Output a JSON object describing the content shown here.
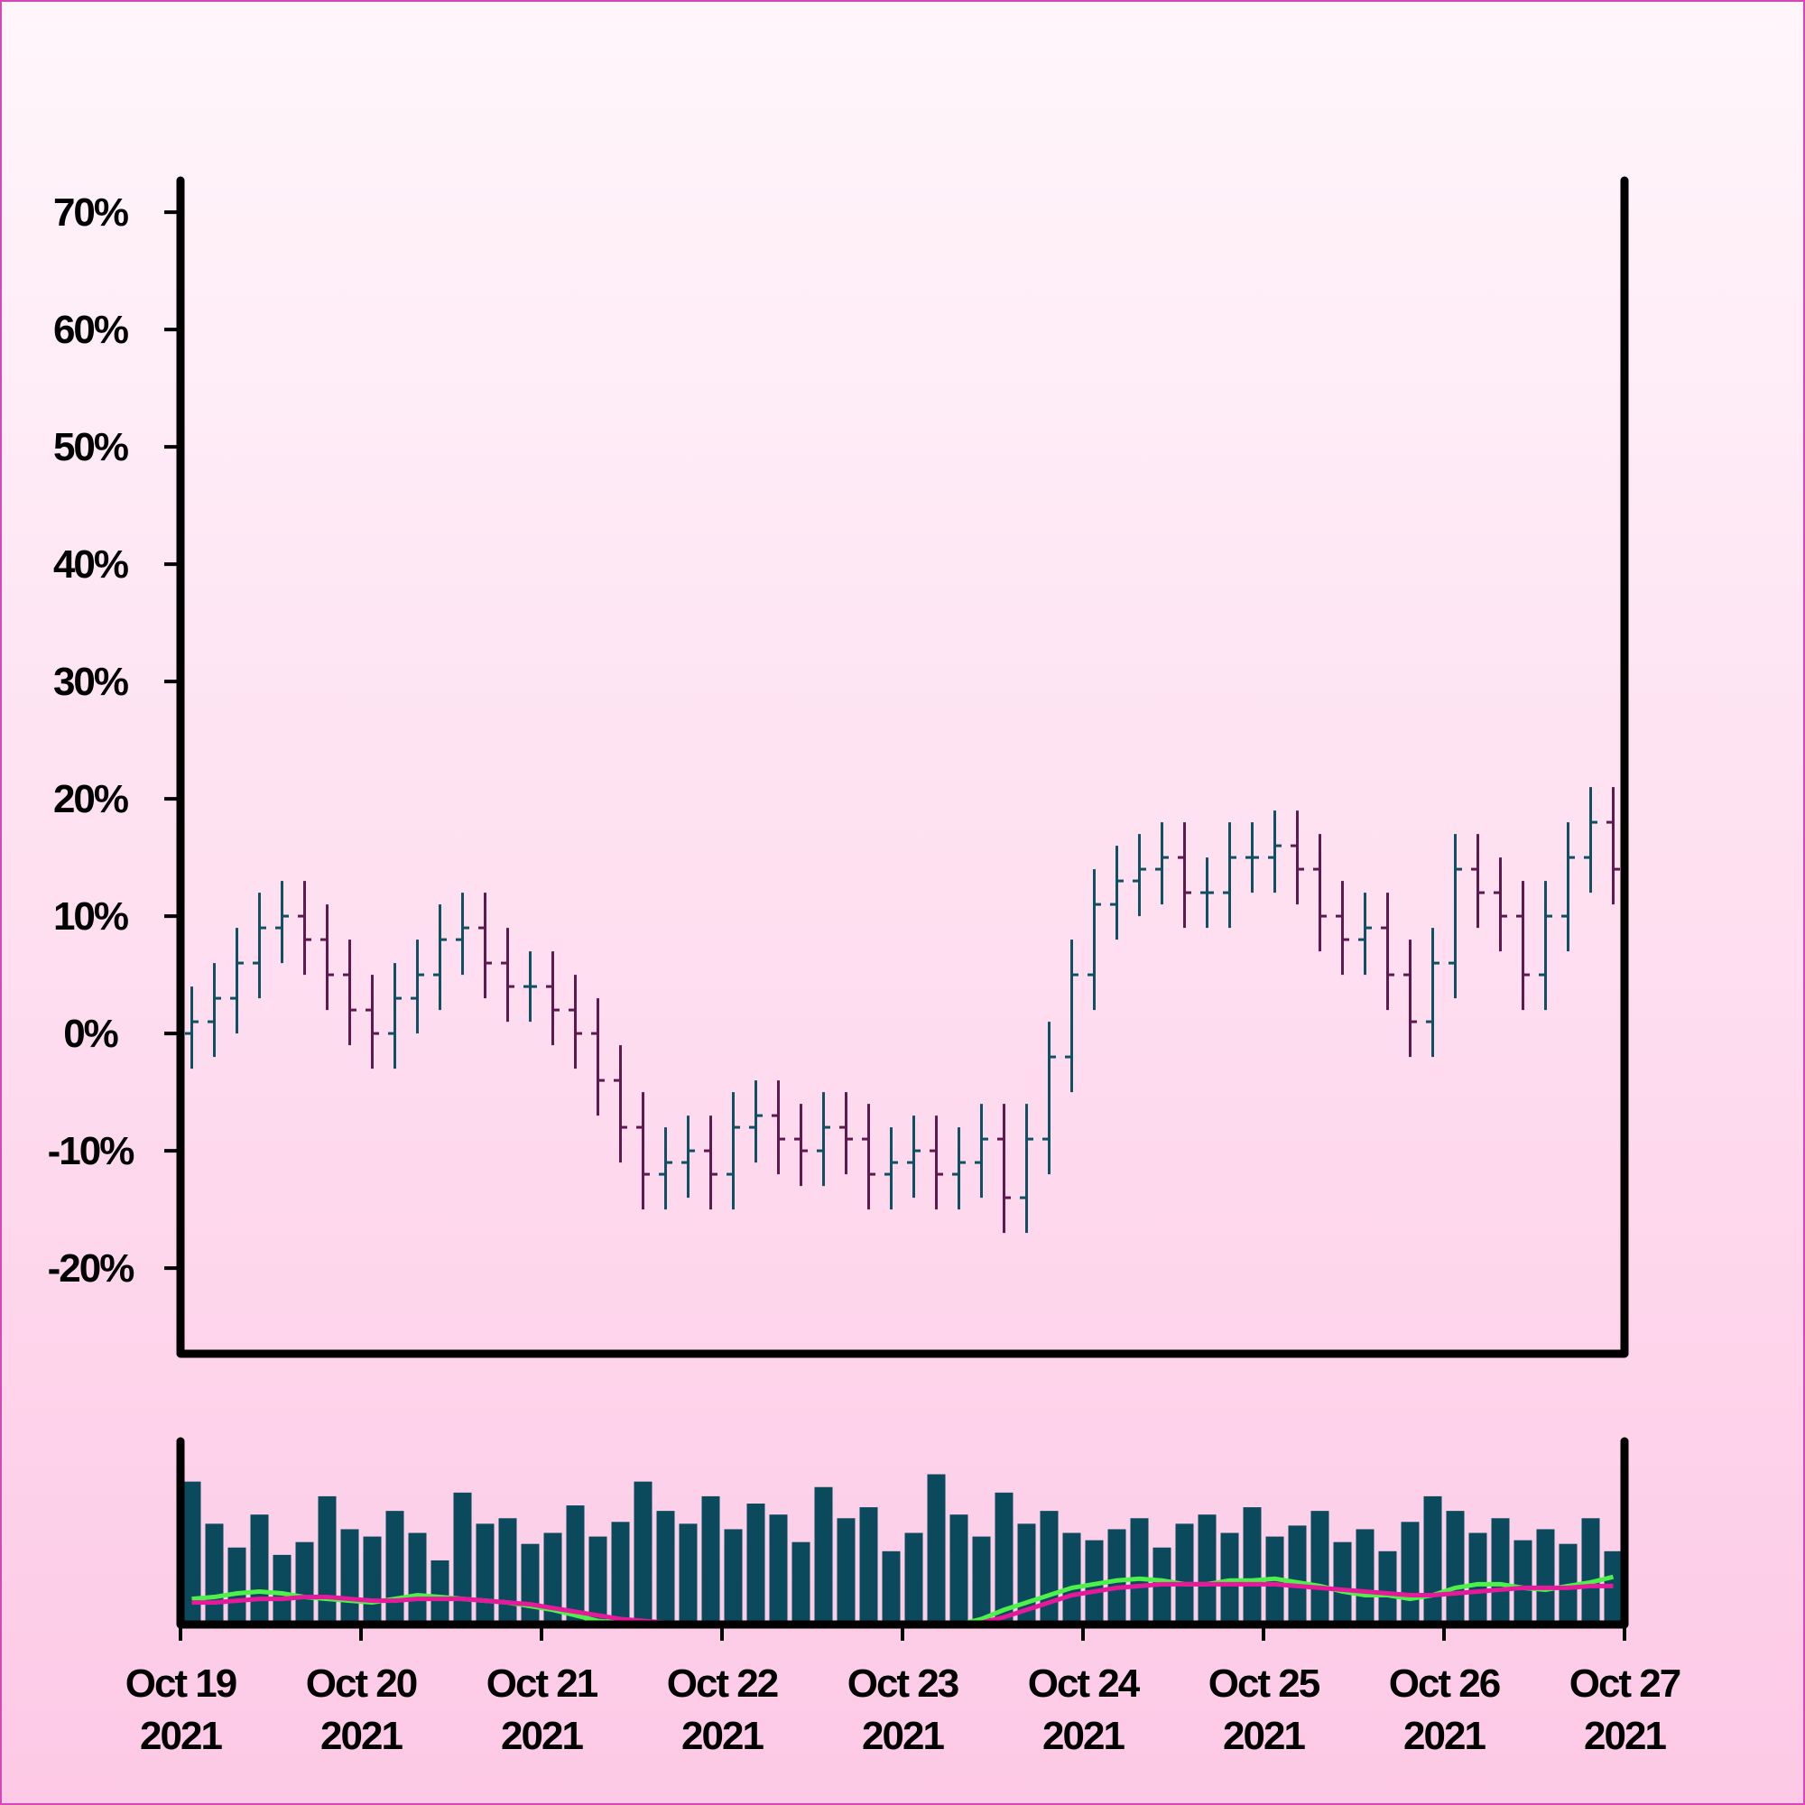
{
  "chart_data": [
    {
      "type": "ohlc",
      "x": [
        0.0625,
        0.1875,
        0.3125,
        0.4375,
        0.5625,
        0.6875,
        0.8125,
        0.9375,
        1.0625,
        1.1875,
        1.3125,
        1.4375,
        1.5625,
        1.6875,
        1.8125,
        1.9375,
        2.0625,
        2.1875,
        2.3125,
        2.4375,
        2.5625,
        2.6875,
        2.8125,
        2.9375,
        3.0625,
        3.1875,
        3.3125,
        3.4375,
        3.5625,
        3.6875,
        3.8125,
        3.9375,
        4.0625,
        4.1875,
        4.3125,
        4.4375,
        4.5625,
        4.6875,
        4.8125,
        4.9375,
        5.0625,
        5.1875,
        5.3125,
        5.4375,
        5.5625,
        5.6875,
        5.8125,
        5.9375,
        6.0625,
        6.1875,
        6.3125,
        6.4375,
        6.5625,
        6.6875,
        6.8125,
        6.9375,
        7.0625,
        7.1875,
        7.3125,
        7.4375,
        7.5625,
        7.6875,
        7.8125,
        7.9375
      ],
      "open": [
        0,
        1,
        3,
        6,
        9,
        10,
        8,
        5,
        2,
        0,
        3,
        5,
        8,
        9,
        6,
        4,
        4,
        2,
        0,
        -4,
        -8,
        -12,
        -11,
        -10,
        -12,
        -8,
        -7,
        -9,
        -10,
        -8,
        -9,
        -12,
        -11,
        -10,
        -12,
        -11,
        -9,
        -14,
        -9,
        -2,
        5,
        11,
        13,
        14,
        15,
        12,
        12,
        15,
        15,
        16,
        14,
        10,
        8,
        9,
        5,
        1,
        6,
        14,
        12,
        10,
        5,
        10,
        15,
        18
      ],
      "high": [
        4,
        6,
        9,
        12,
        13,
        13,
        11,
        8,
        5,
        6,
        8,
        11,
        12,
        12,
        9,
        7,
        7,
        5,
        3,
        -1,
        -5,
        -8,
        -7,
        -7,
        -5,
        -4,
        -4,
        -6,
        -5,
        -5,
        -6,
        -8,
        -7,
        -7,
        -8,
        -6,
        -6,
        -6,
        1,
        8,
        14,
        16,
        17,
        18,
        18,
        15,
        18,
        18,
        19,
        19,
        17,
        13,
        12,
        12,
        8,
        9,
        17,
        17,
        15,
        13,
        13,
        18,
        21,
        21
      ],
      "low": [
        -3,
        -2,
        0,
        3,
        6,
        5,
        2,
        -1,
        -3,
        -3,
        0,
        2,
        5,
        3,
        1,
        1,
        -1,
        -3,
        -7,
        -11,
        -15,
        -15,
        -14,
        -15,
        -15,
        -11,
        -12,
        -13,
        -13,
        -12,
        -15,
        -15,
        -14,
        -15,
        -15,
        -14,
        -17,
        -17,
        -12,
        -5,
        2,
        8,
        10,
        11,
        9,
        9,
        9,
        12,
        12,
        11,
        7,
        5,
        5,
        2,
        -2,
        -2,
        3,
        9,
        7,
        2,
        2,
        7,
        12,
        11
      ],
      "close": [
        1,
        3,
        6,
        9,
        10,
        8,
        5,
        2,
        0,
        3,
        5,
        8,
        9,
        6,
        4,
        4,
        2,
        0,
        -4,
        -8,
        -12,
        -11,
        -10,
        -12,
        -8,
        -7,
        -9,
        -10,
        -8,
        -9,
        -12,
        -11,
        -10,
        -12,
        -11,
        -9,
        -14,
        -9,
        -2,
        5,
        11,
        13,
        14,
        15,
        12,
        12,
        15,
        15,
        16,
        14,
        10,
        8,
        9,
        5,
        1,
        6,
        14,
        12,
        10,
        5,
        10,
        15,
        18,
        14
      ],
      "up_color": "#0f5062",
      "down_color": "#5c1a4e",
      "xlim": [
        0,
        8
      ],
      "ylim": [
        -27.3,
        72.7
      ],
      "yticks": [
        {
          "value": -20,
          "label": "-20%"
        },
        {
          "value": -10,
          "label": "-10%"
        },
        {
          "value": 0,
          "label": "0%"
        },
        {
          "value": 10,
          "label": "10%"
        },
        {
          "value": 20,
          "label": "20%"
        },
        {
          "value": 30,
          "label": "30%"
        },
        {
          "value": 40,
          "label": "40%"
        },
        {
          "value": 50,
          "label": "50%"
        },
        {
          "value": 60,
          "label": "60%"
        },
        {
          "value": 70,
          "label": "70%"
        }
      ]
    },
    {
      "type": "bar",
      "x": [
        0.0625,
        0.1875,
        0.3125,
        0.4375,
        0.5625,
        0.6875,
        0.8125,
        0.9375,
        1.0625,
        1.1875,
        1.3125,
        1.4375,
        1.5625,
        1.6875,
        1.8125,
        1.9375,
        2.0625,
        2.1875,
        2.3125,
        2.4375,
        2.5625,
        2.6875,
        2.8125,
        2.9375,
        3.0625,
        3.1875,
        3.3125,
        3.4375,
        3.5625,
        3.6875,
        3.8125,
        3.9375,
        4.0625,
        4.1875,
        4.3125,
        4.4375,
        4.5625,
        4.6875,
        4.8125,
        4.9375,
        5.0625,
        5.1875,
        5.3125,
        5.4375,
        5.5625,
        5.6875,
        5.8125,
        5.9375,
        6.0625,
        6.1875,
        6.3125,
        6.4375,
        6.5625,
        6.6875,
        6.8125,
        6.9375,
        7.0625,
        7.1875,
        7.3125,
        7.4375,
        7.5625,
        7.6875,
        7.8125,
        7.9375
      ],
      "values": [
        78,
        55,
        42,
        60,
        38,
        45,
        70,
        52,
        48,
        62,
        50,
        35,
        72,
        55,
        58,
        44,
        50,
        65,
        48,
        56,
        78,
        62,
        55,
        70,
        52,
        66,
        60,
        45,
        75,
        58,
        64,
        40,
        50,
        82,
        60,
        48,
        72,
        55,
        62,
        50,
        46,
        52,
        58,
        42,
        55,
        60,
        50,
        64,
        48,
        54,
        62,
        45,
        52,
        40,
        56,
        70,
        62,
        50,
        58,
        46,
        52,
        44,
        58,
        40
      ],
      "color": "#0b4a5c",
      "lines": [
        {
          "color": "#4ef04a",
          "values": [
            14,
            15,
            17,
            18,
            17,
            15,
            14,
            13,
            12,
            14,
            16,
            15,
            14,
            13,
            12,
            10,
            8,
            5,
            2,
            1,
            0,
            0,
            0,
            0,
            0,
            0,
            0,
            0,
            0,
            0,
            0,
            0,
            0,
            0,
            0,
            3,
            8,
            12,
            16,
            20,
            22,
            24,
            25,
            24,
            22,
            22,
            24,
            24,
            25,
            23,
            21,
            18,
            16,
            16,
            14,
            16,
            20,
            22,
            22,
            20,
            19,
            21,
            23,
            26
          ]
        },
        {
          "color": "#e6199a",
          "values": [
            12,
            12,
            13,
            14,
            14,
            15,
            15,
            14,
            13,
            13,
            14,
            14,
            14,
            13,
            12,
            11,
            9,
            7,
            5,
            3,
            2,
            1,
            0,
            0,
            0,
            0,
            0,
            0,
            0,
            0,
            0,
            0,
            0,
            0,
            0,
            1,
            4,
            8,
            12,
            16,
            18,
            20,
            21,
            22,
            22,
            22,
            22,
            22,
            22,
            21,
            20,
            19,
            18,
            17,
            16,
            16,
            17,
            18,
            19,
            20,
            20,
            20,
            21,
            21
          ]
        }
      ],
      "xlim": [
        0,
        8
      ],
      "ylim": [
        0,
        100
      ],
      "xticks": [
        {
          "value": 0,
          "label": "Oct 19\n2021"
        },
        {
          "value": 1,
          "label": "Oct 20\n2021"
        },
        {
          "value": 2,
          "label": "Oct 21\n2021"
        },
        {
          "value": 3,
          "label": "Oct 22\n2021"
        },
        {
          "value": 4,
          "label": "Oct 23\n2021"
        },
        {
          "value": 5,
          "label": "Oct 24\n2021"
        },
        {
          "value": 6,
          "label": "Oct 25\n2021"
        },
        {
          "value": 7,
          "label": "Oct 26\n2021"
        },
        {
          "value": 8,
          "label": "Oct 27\n2021"
        }
      ]
    }
  ]
}
